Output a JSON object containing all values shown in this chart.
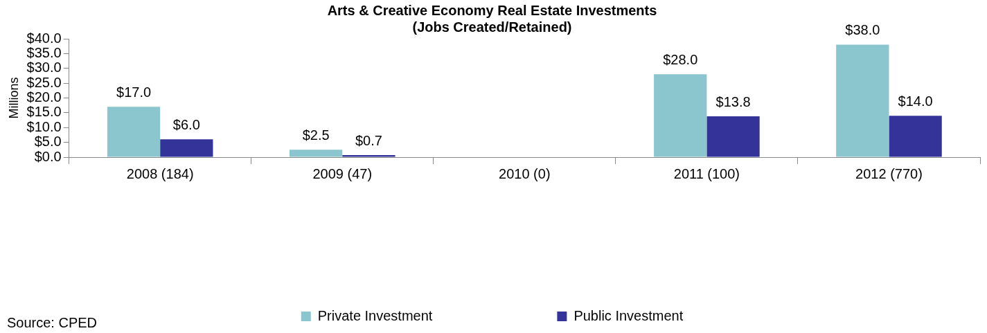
{
  "chart_data": {
    "type": "bar",
    "title": [
      "Arts & Creative Economy Real Estate Investments",
      "(Jobs Created/Retained)"
    ],
    "ylabel": "Millions",
    "categories": [
      "2008 (184)",
      "2009 (47)",
      "2010 (0)",
      "2011 (100)",
      "2012 (770)"
    ],
    "series": [
      {
        "name": "Private Investment",
        "color": "#8bc5cd",
        "values": [
          17.0,
          2.5,
          null,
          28.0,
          38.0
        ],
        "value_labels": [
          "$17.0",
          "$2.5",
          null,
          "$28.0",
          "$38.0"
        ]
      },
      {
        "name": "Public Investment",
        "color": "#333399",
        "values": [
          6.0,
          0.7,
          null,
          13.8,
          14.0
        ],
        "value_labels": [
          "$6.0",
          "$0.7",
          null,
          "$13.8",
          "$14.0"
        ]
      }
    ],
    "ylim": [
      0,
      40
    ],
    "yticks": [
      {
        "value": 0,
        "label": "$0.0"
      },
      {
        "value": 5,
        "label": "$5.0"
      },
      {
        "value": 10,
        "label": "$10.0"
      },
      {
        "value": 15,
        "label": "$15.0"
      },
      {
        "value": 20,
        "label": "$20.0"
      },
      {
        "value": 25,
        "label": "$25.0"
      },
      {
        "value": 30,
        "label": "$30.0"
      },
      {
        "value": 35,
        "label": "$35.0"
      },
      {
        "value": 40,
        "label": "$40.0"
      }
    ],
    "grid": false,
    "legend": "bottom",
    "annotations": [
      "Source: CPED"
    ]
  }
}
